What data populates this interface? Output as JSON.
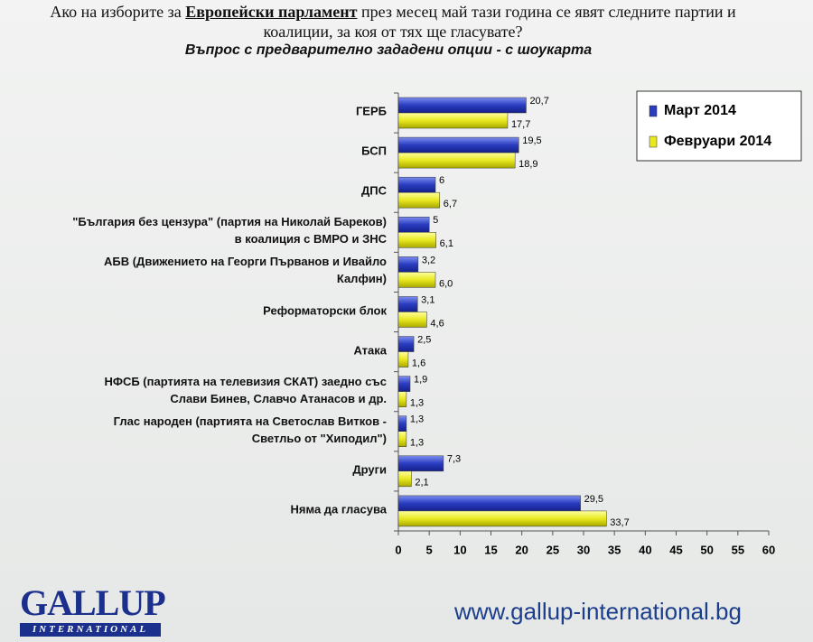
{
  "chart_data": {
    "type": "barh",
    "title": [
      "Ако на изборите за ",
      "Европейски парламент",
      " през месец май тази година се явят следните партии и коалиции, за коя от тях ще гласувате?"
    ],
    "subtitle": "Въпрос с предварително зададени опции - с шоукарта",
    "categories": [
      "ГЕРБ",
      "БСП",
      "ДПС",
      "\"България без цензура\" (партия на Николай Бареков)\nв коалиция с ВМРО и ЗНС",
      "АБВ (Движението на Георги Първанов и Ивайло\nКалфин)",
      "Реформаторски блок",
      "Атака",
      "НФСБ (партията на телевизия СКАТ) заедно със\nСлави Бинев, Славчо Атанасов и др.",
      "Глас народен (партията на Светослав Витков -\nСветльо от \"Хиподил\")",
      "Други",
      "Няма да гласува"
    ],
    "series": [
      {
        "name": "Март 2014",
        "color": "#2a3cc0",
        "values": [
          20.7,
          19.5,
          6,
          5,
          3.2,
          3.1,
          2.5,
          1.9,
          1.3,
          7.3,
          29.5
        ],
        "value_labels": [
          "20,7",
          "19,5",
          "6",
          "5",
          "3,2",
          "3,1",
          "2,5",
          "1,9",
          "1,3",
          "7,3",
          "29,5"
        ]
      },
      {
        "name": "Февруари 2014",
        "color": "#e8e820",
        "values": [
          17.7,
          18.9,
          6.7,
          6.1,
          6.0,
          4.6,
          1.6,
          1.3,
          1.3,
          2.1,
          33.7
        ],
        "value_labels": [
          "17,7",
          "18,9",
          "6,7",
          "6,1",
          "6,0",
          "4,6",
          "1,6",
          "1,3",
          "1,3",
          "2,1",
          "33,7"
        ]
      }
    ],
    "xlim": [
      0,
      60
    ],
    "xticks": [
      0,
      5,
      10,
      15,
      20,
      25,
      30,
      35,
      40,
      45,
      50,
      55,
      60
    ],
    "grid": false,
    "legend": "top-right"
  },
  "footer": {
    "logo_name": "GALLUP",
    "logo_sub": "INTERNATIONAL",
    "website": "www.gallup-international.bg"
  }
}
